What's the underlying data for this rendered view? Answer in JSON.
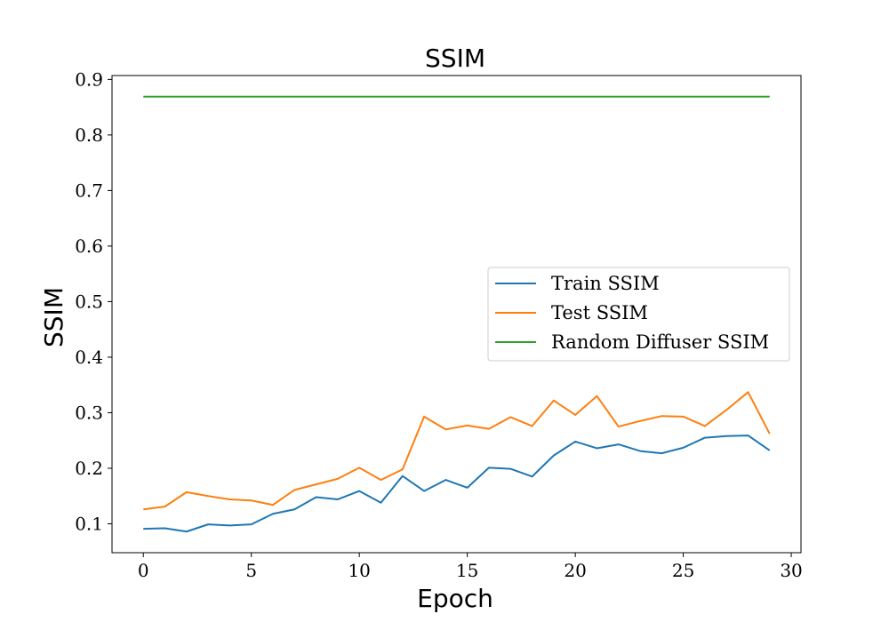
{
  "chart_data": {
    "type": "line",
    "title": "SSIM",
    "xlabel": "Epoch",
    "ylabel": "SSIM",
    "xlim": [
      -1.45,
      30.45
    ],
    "ylim": [
      0.048,
      0.907
    ],
    "xticks": [
      0,
      5,
      10,
      15,
      20,
      25,
      30
    ],
    "yticks": [
      0.1,
      0.2,
      0.3,
      0.4,
      0.5,
      0.6,
      0.7,
      0.8,
      0.9
    ],
    "grid": false,
    "legend_position": "center-right",
    "x": [
      0,
      1,
      2,
      3,
      4,
      5,
      6,
      7,
      8,
      9,
      10,
      11,
      12,
      13,
      14,
      15,
      16,
      17,
      18,
      19,
      20,
      21,
      22,
      23,
      24,
      25,
      26,
      27,
      28,
      29
    ],
    "series": [
      {
        "name": "Train SSIM",
        "color": "#1f77b4",
        "values": [
          0.091,
          0.092,
          0.086,
          0.099,
          0.097,
          0.099,
          0.118,
          0.126,
          0.148,
          0.144,
          0.159,
          0.138,
          0.186,
          0.159,
          0.179,
          0.165,
          0.201,
          0.199,
          0.185,
          0.223,
          0.248,
          0.236,
          0.243,
          0.231,
          0.227,
          0.237,
          0.255,
          0.258,
          0.259,
          0.232
        ]
      },
      {
        "name": "Test SSIM",
        "color": "#ff7f0e",
        "values": [
          0.126,
          0.131,
          0.157,
          0.15,
          0.144,
          0.142,
          0.134,
          0.161,
          0.171,
          0.181,
          0.201,
          0.179,
          0.198,
          0.293,
          0.27,
          0.277,
          0.271,
          0.292,
          0.276,
          0.322,
          0.296,
          0.33,
          0.275,
          0.285,
          0.294,
          0.293,
          0.276,
          0.305,
          0.337,
          0.262
        ]
      },
      {
        "name": "Random Diffuser SSIM",
        "color": "#2ca02c",
        "values": [
          0.869,
          0.869,
          0.869,
          0.869,
          0.869,
          0.869,
          0.869,
          0.869,
          0.869,
          0.869,
          0.869,
          0.869,
          0.869,
          0.869,
          0.869,
          0.869,
          0.869,
          0.869,
          0.869,
          0.869,
          0.869,
          0.869,
          0.869,
          0.869,
          0.869,
          0.869,
          0.869,
          0.869,
          0.869,
          0.869
        ]
      }
    ]
  }
}
